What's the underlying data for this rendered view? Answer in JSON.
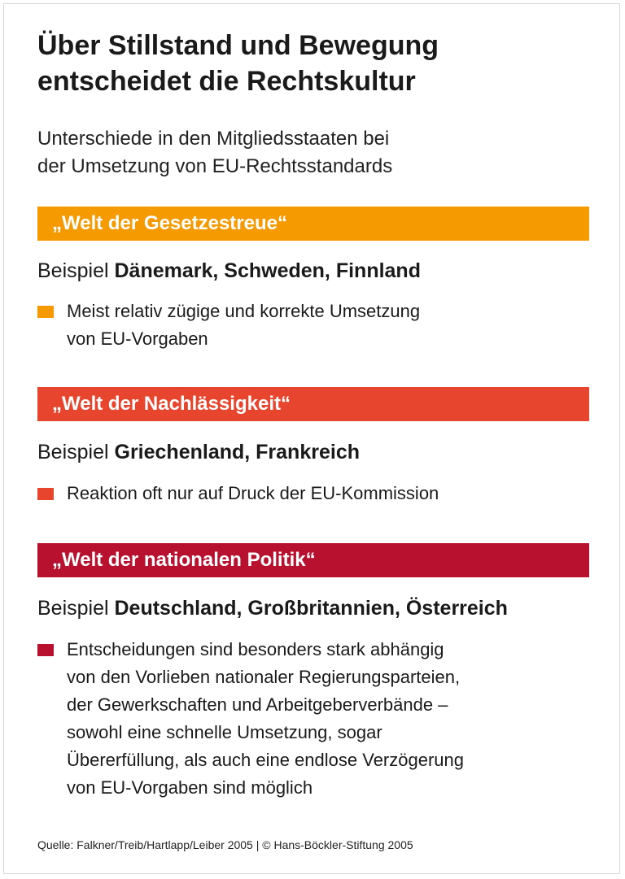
{
  "title_lines": [
    "Über Stillstand und Bewegung",
    "entscheidet die Rechtskultur"
  ],
  "subtitle_lines": [
    "Unterschiede in den Mitgliedsstaaten bei",
    "der Umsetzung von EU-Rechtsstandards"
  ],
  "colors": {
    "orange": "#f59a00",
    "red_orange": "#e8452e",
    "crimson": "#b8102f"
  },
  "sections": [
    {
      "heading": "„Welt der Gesetzestreue“",
      "example_prefix": "Beispiel ",
      "example_countries": "Dänemark, Schweden, Finnland",
      "bullet_lines": [
        "Meist relativ zügige und korrekte Umsetzung",
        "von EU-Vorgaben"
      ]
    },
    {
      "heading": "„Welt der Nachlässigkeit“",
      "example_prefix": "Beispiel ",
      "example_countries": "Griechenland, Frankreich",
      "bullet_lines": [
        "Reaktion oft nur auf Druck der EU-Kommission"
      ]
    },
    {
      "heading": "„Welt der nationalen Politik“",
      "example_prefix": "Beispiel ",
      "example_countries": "Deutschland, Großbritannien, Österreich",
      "bullet_lines": [
        "Entscheidungen sind besonders stark abhängig",
        "von den Vorlieben nationaler Regierungsparteien,",
        "der Gewerkschaften und Arbeitgeberverbände –",
        "sowohl eine schnelle Umsetzung, sogar",
        "Übererfüllung, als auch eine endlose Verzögerung",
        "von EU-Vorgaben sind möglich"
      ]
    }
  ],
  "source": "Quelle: Falkner/Treib/Hartlapp/Leiber 2005 | © Hans-Böckler-Stiftung 2005"
}
